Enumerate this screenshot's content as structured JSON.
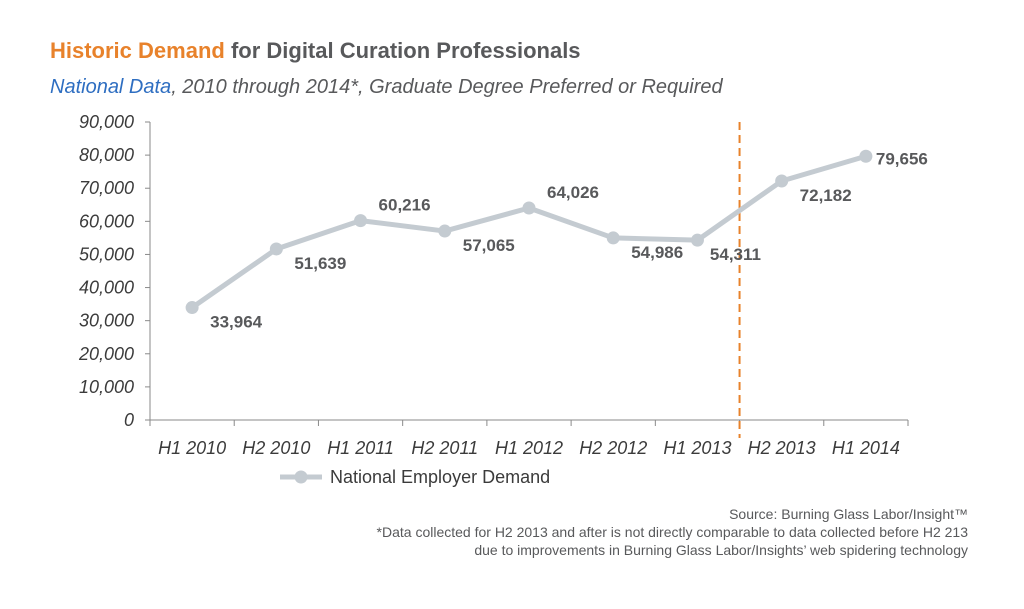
{
  "header": {
    "title_accent": "Historic Demand",
    "title_rest": " for Digital Curation Professionals",
    "subtitle_accent": "National Data",
    "subtitle_rest": ", 2010 through 2014*, Graduate Degree Preferred or Required"
  },
  "footer": {
    "source": "Source: Burning Glass Labor/Insight™",
    "note_line1": "*Data collected for H2 2013 and after is not directly comparable to data collected before H2 213",
    "note_line2": "due to improvements in Burning Glass Labor/Insights’ web spidering technology"
  },
  "colors": {
    "series": "#c4cbd1",
    "divider": "#e8822b",
    "title_accent": "#e8822b",
    "subtitle_accent": "#2e6ec1",
    "text": "#58595b"
  },
  "chart_data": {
    "type": "line",
    "title": "Historic Demand for Digital Curation Professionals",
    "subtitle": "National Data, 2010 through 2014*, Graduate Degree Preferred or Required",
    "categories": [
      "H1 2010",
      "H2 2010",
      "H1 2011",
      "H2 2011",
      "H1 2012",
      "H2 2012",
      "H1 2013",
      "H2 2013",
      "H1 2014"
    ],
    "series": [
      {
        "name": "National Employer Demand",
        "values": [
          33964,
          51639,
          60216,
          57065,
          64026,
          54986,
          54311,
          72182,
          79656
        ]
      }
    ],
    "value_labels": [
      "33,964",
      "51,639",
      "60,216",
      "57,065",
      "64,026",
      "54,986",
      "54,311",
      "72,182",
      "79,656"
    ],
    "ytick_labels": [
      "0",
      "10,000",
      "20,000",
      "30,000",
      "40,000",
      "50,000",
      "60,000",
      "70,000",
      "80,000",
      "90,000"
    ],
    "ylim": [
      0,
      90000
    ],
    "ytick_step": 10000,
    "divider_between": [
      "H1 2013",
      "H2 2013"
    ],
    "legend_position": "bottom",
    "grid": false
  }
}
